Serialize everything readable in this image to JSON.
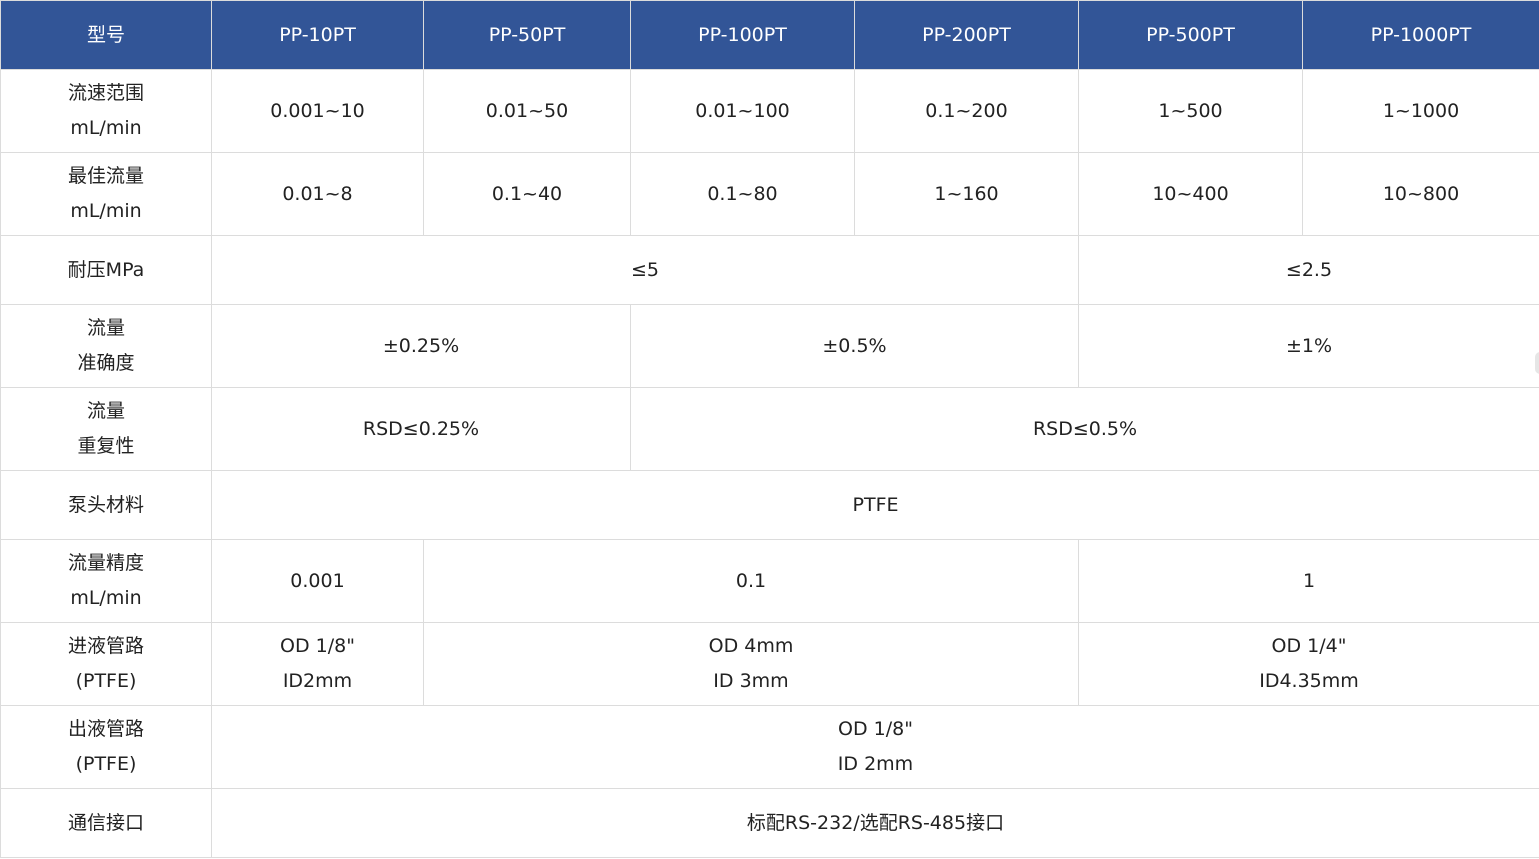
{
  "header": {
    "col0": "型号",
    "models": [
      "PP-10PT",
      "PP-50PT",
      "PP-100PT",
      "PP-200PT",
      "PP-500PT",
      "PP-1000PT"
    ]
  },
  "rows": {
    "flow_range": {
      "label_line1": "流速范围",
      "label_line2": "mL/min",
      "values": [
        "0.001~10",
        "0.01~50",
        "0.01~100",
        "0.1~200",
        "1~500",
        "1~1000"
      ]
    },
    "optimal_flow": {
      "label_line1": "最佳流量",
      "label_line2": "mL/min",
      "values": [
        "0.01~8",
        "0.1~40",
        "0.1~80",
        "1~160",
        "10~400",
        "10~800"
      ]
    },
    "pressure": {
      "label": "耐压MPa",
      "value_a": "≤5",
      "value_b": "≤2.5"
    },
    "accuracy": {
      "label_line1": "流量",
      "label_line2": "准确度",
      "value_a": "±0.25%",
      "value_b": "±0.5%",
      "value_c": "±1%"
    },
    "repeatability": {
      "label_line1": "流量",
      "label_line2": "重复性",
      "value_a": "RSD≤0.25%",
      "value_b": "RSD≤0.5%"
    },
    "head_material": {
      "label": "泵头材料",
      "value": "PTFE"
    },
    "flow_precision": {
      "label_line1": "流量精度",
      "label_line2": "mL/min",
      "value_a": "0.001",
      "value_b": "0.1",
      "value_c": "1"
    },
    "inlet_tube": {
      "label_line1": "进液管路",
      "label_line2": "(PTFE)",
      "a_line1": "OD 1/8\"",
      "a_line2": "ID2mm",
      "b_line1": "OD 4mm",
      "b_line2": "ID 3mm",
      "c_line1": "OD 1/4\"",
      "c_line2": "ID4.35mm"
    },
    "outlet_tube": {
      "label_line1": "出液管路",
      "label_line2": "(PTFE)",
      "line1": "OD 1/8\"",
      "line2": "ID 2mm"
    },
    "interface": {
      "label": "通信接口",
      "value": "标配RS-232/选配RS-485接口"
    }
  },
  "colors": {
    "header_bg": "#325597",
    "header_text": "#ffffff",
    "border": "#dcdcdc",
    "body_text": "#222222"
  }
}
